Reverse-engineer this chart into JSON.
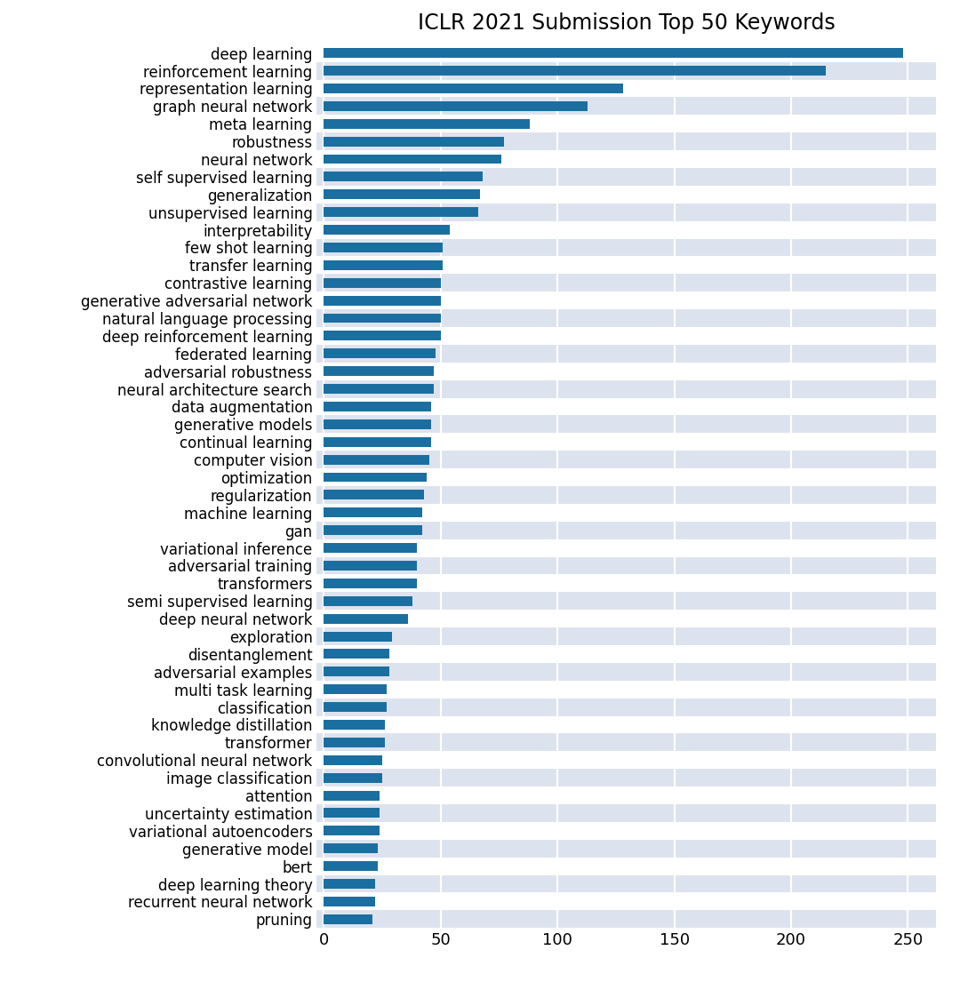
{
  "title": "ICLR 2021 Submission Top 50 Keywords",
  "categories": [
    "deep learning",
    "reinforcement learning",
    "representation learning",
    "graph neural network",
    "meta learning",
    "robustness",
    "neural network",
    "self supervised learning",
    "generalization",
    "unsupervised learning",
    "interpretability",
    "few shot learning",
    "transfer learning",
    "contrastive learning",
    "generative adversarial network",
    "natural language processing",
    "deep reinforcement learning",
    "federated learning",
    "adversarial robustness",
    "neural architecture search",
    "data augmentation",
    "generative models",
    "continual learning",
    "computer vision",
    "optimization",
    "regularization",
    "machine learning",
    "gan",
    "variational inference",
    "adversarial training",
    "transformers",
    "semi supervised learning",
    "deep neural network",
    "exploration",
    "disentanglement",
    "adversarial examples",
    "multi task learning",
    "classification",
    "knowledge distillation",
    "transformer",
    "convolutional neural network",
    "image classification",
    "attention",
    "uncertainty estimation",
    "variational autoencoders",
    "generative model",
    "bert",
    "deep learning theory",
    "recurrent neural network",
    "pruning"
  ],
  "values": [
    248,
    215,
    128,
    113,
    88,
    77,
    76,
    68,
    67,
    66,
    54,
    51,
    51,
    50,
    50,
    50,
    50,
    48,
    47,
    47,
    46,
    46,
    46,
    45,
    44,
    43,
    42,
    42,
    40,
    40,
    40,
    38,
    36,
    29,
    28,
    28,
    27,
    27,
    26,
    26,
    25,
    25,
    24,
    24,
    24,
    23,
    23,
    22,
    22,
    21
  ],
  "bar_color": "#1a6fa0",
  "background_color": "#ffffff",
  "axes_background": "#ffffff",
  "row_bg_even": "#dde3ee",
  "row_bg_odd": "#ffffff",
  "grid_color": "#ffffff",
  "title_fontsize": 17,
  "label_fontsize": 12,
  "tick_fontsize": 13,
  "xlim": [
    -3,
    262
  ]
}
